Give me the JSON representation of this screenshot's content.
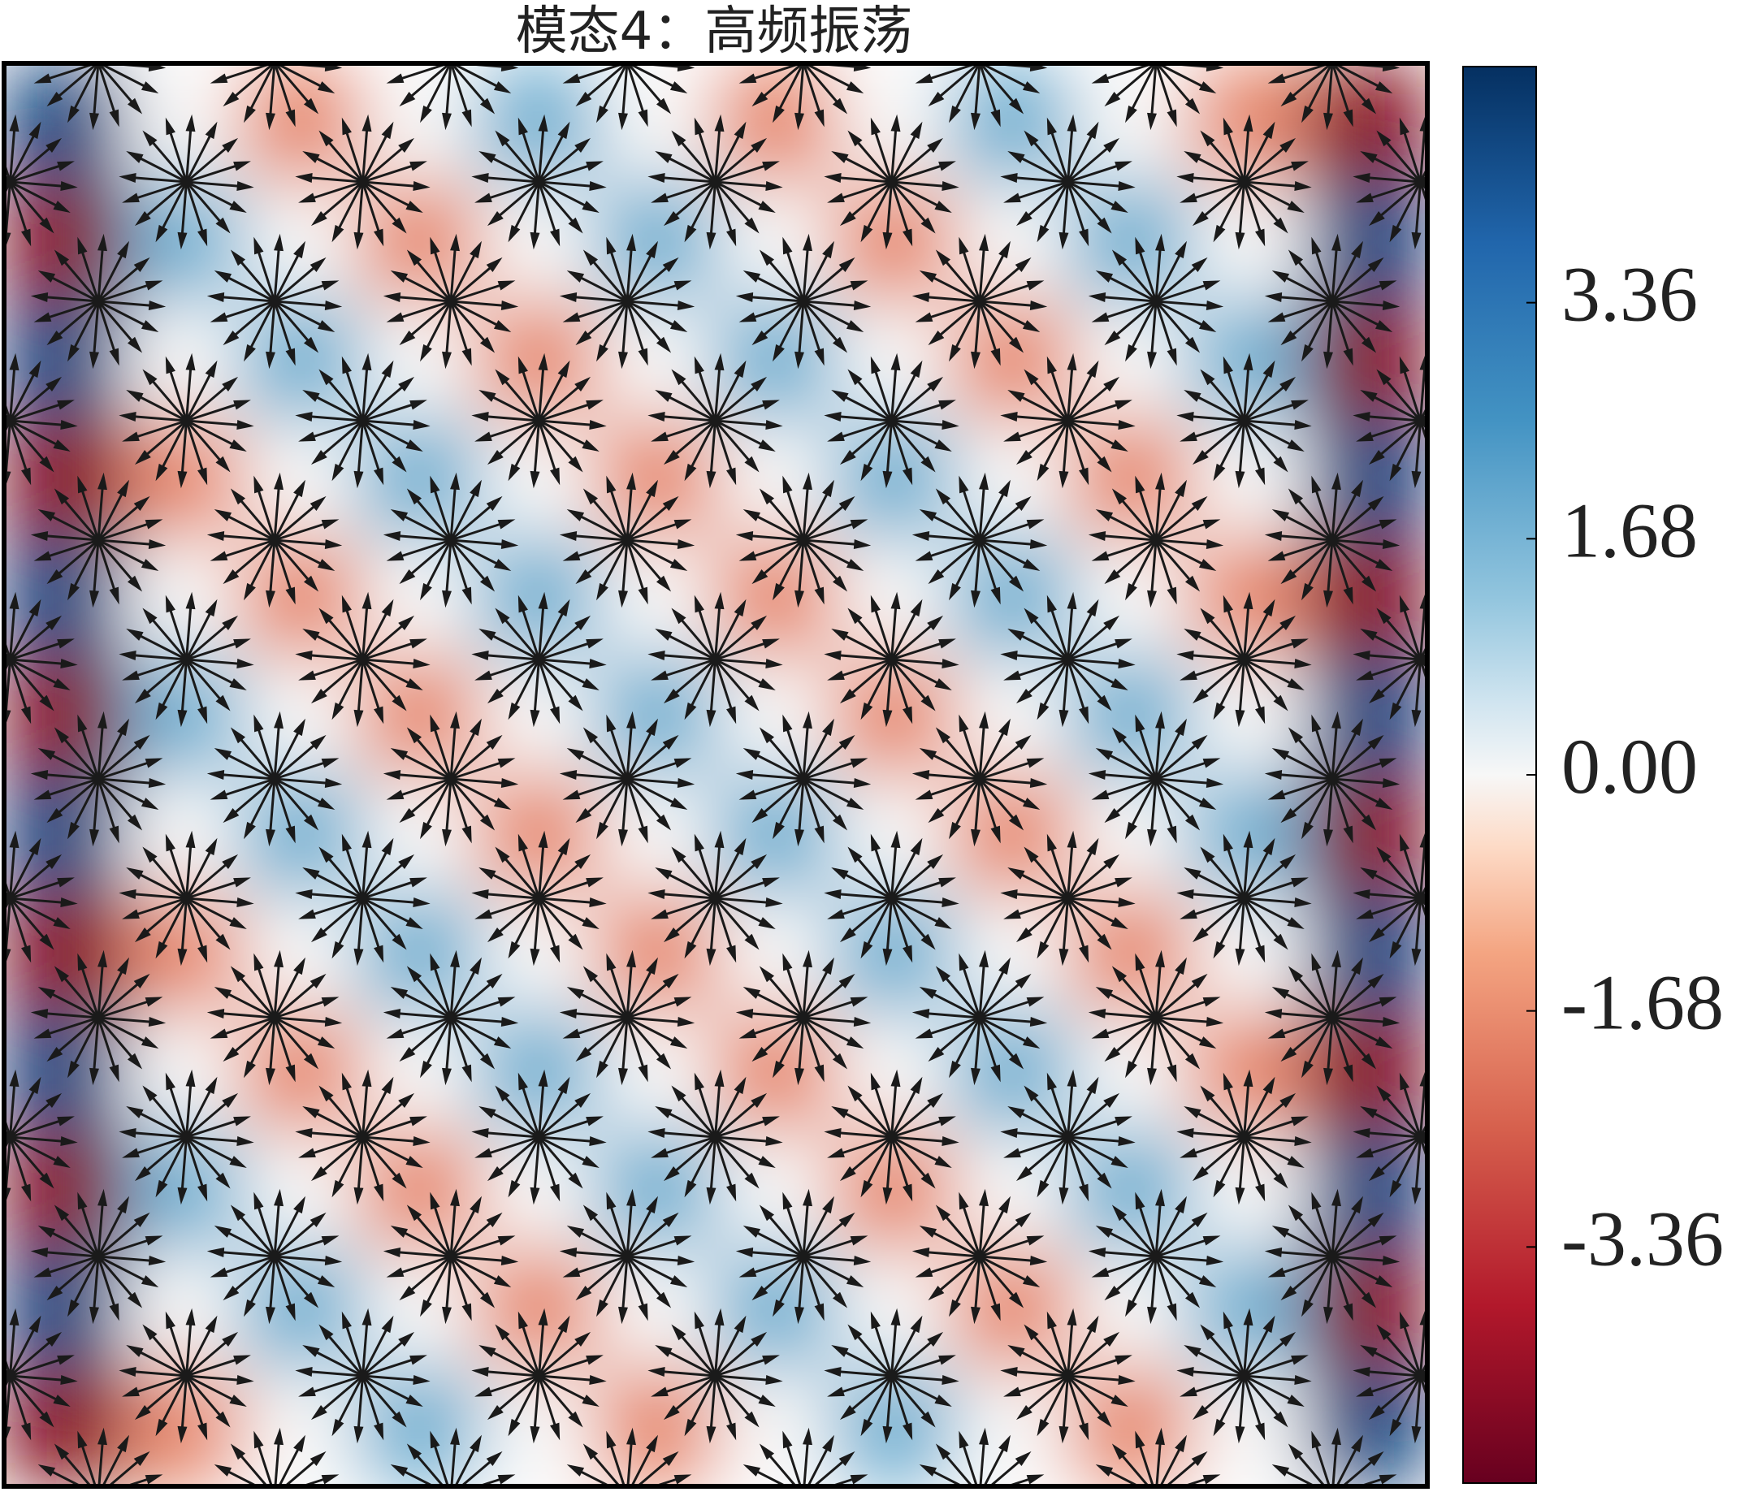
{
  "chart_data": {
    "type": "heatmap",
    "title": "模态4：高频振荡",
    "colormap": "RdBu",
    "clim": [
      -5.04,
      5.04
    ],
    "cticks": [
      -3.36,
      -1.68,
      {
        "value": 0,
        "label": "0.00"
      },
      1.68,
      3.36
    ],
    "values": [
      [
        4.5,
        0,
        -1.8,
        0,
        1.8,
        0,
        -1.8,
        0,
        1.8,
        0,
        -1.8,
        -4.5
      ],
      [
        -4.5,
        1.8,
        0,
        -1.8,
        0,
        1.8,
        0,
        -1.8,
        0,
        1.8,
        0,
        4.5
      ],
      [
        4.5,
        0,
        1.8,
        0,
        -1.8,
        0,
        1.8,
        0,
        -1.8,
        0,
        1.8,
        -4.5
      ],
      [
        -4.5,
        -1.8,
        0,
        1.8,
        0,
        -1.8,
        0,
        1.8,
        0,
        -1.8,
        0,
        4.5
      ],
      [
        4.5,
        0,
        -1.8,
        0,
        1.8,
        0,
        -1.8,
        0,
        1.8,
        0,
        -1.8,
        -4.5
      ],
      [
        -4.5,
        1.8,
        0,
        -1.8,
        0,
        1.8,
        0,
        -1.8,
        0,
        1.8,
        0,
        4.5
      ],
      [
        4.5,
        0,
        1.8,
        0,
        -1.8,
        0,
        1.8,
        0,
        -1.8,
        0,
        1.8,
        -4.5
      ],
      [
        -4.5,
        -1.8,
        0,
        1.8,
        0,
        -1.8,
        0,
        1.8,
        0,
        -1.8,
        0,
        4.5
      ],
      [
        4.5,
        0,
        -1.8,
        0,
        1.8,
        0,
        -1.8,
        0,
        1.8,
        0,
        -1.8,
        -4.5
      ],
      [
        -4.5,
        1.8,
        0,
        -1.8,
        0,
        1.8,
        0,
        -1.8,
        0,
        1.8,
        0,
        4.5
      ],
      [
        4.5,
        0,
        1.8,
        0,
        -1.8,
        0,
        1.8,
        0,
        -1.8,
        0,
        1.8,
        -4.5
      ],
      [
        -4.5,
        -1.8,
        0,
        1.8,
        0,
        -1.8,
        0,
        1.8,
        0,
        -1.8,
        0,
        4.5
      ]
    ]
  }
}
